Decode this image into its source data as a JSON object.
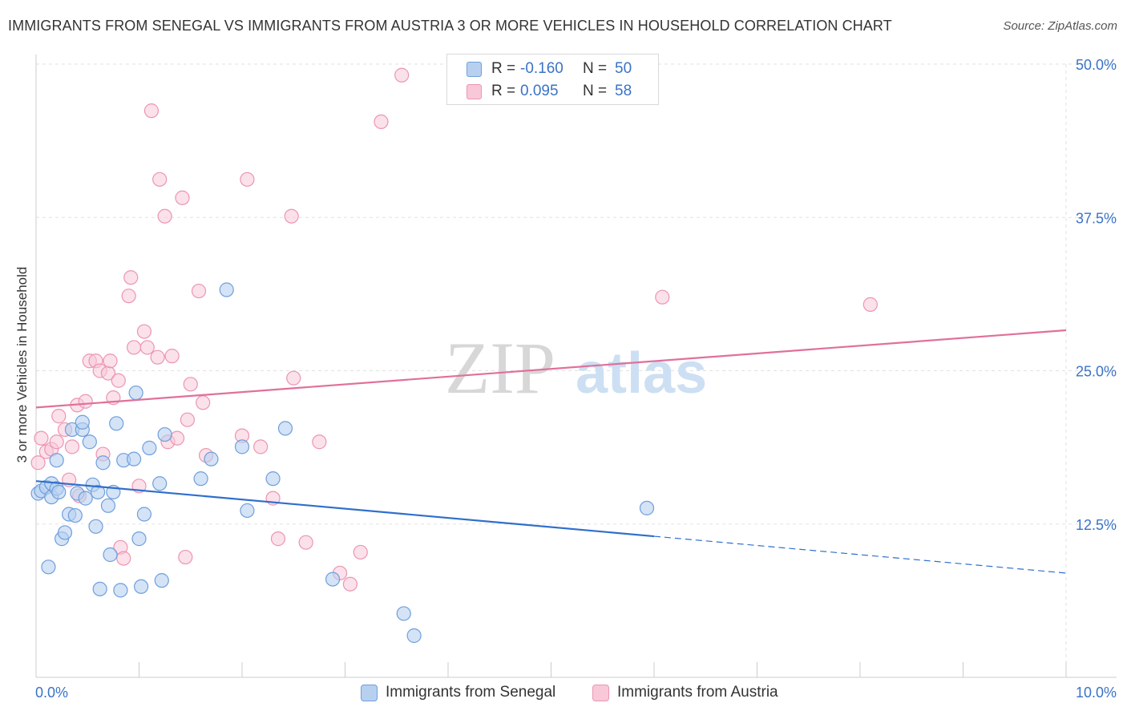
{
  "title": "IMMIGRANTS FROM SENEGAL VS IMMIGRANTS FROM AUSTRIA 3 OR MORE VEHICLES IN HOUSEHOLD CORRELATION CHART",
  "source": "Source: ZipAtlas.com",
  "watermark": {
    "zip": "ZIP",
    "atlas": "atlas"
  },
  "legend": {
    "rows": [
      {
        "r_label": "R =",
        "r_value": "-0.160",
        "n_label": "N =",
        "n_value": "50"
      },
      {
        "r_label": "R =",
        "r_value": "0.095",
        "n_label": "N =",
        "n_value": "58"
      }
    ]
  },
  "colors": {
    "senegal_fill": "#b8d0f0",
    "senegal_stroke": "#6f9fdc",
    "senegal_line": "#2f6fcc",
    "austria_fill": "#f8c8d8",
    "austria_stroke": "#ec95b2",
    "austria_line": "#e0709a",
    "grid": "#e2e2e2",
    "tick_label": "#3a73c6"
  },
  "chart_data": {
    "type": "scatter",
    "title": "IMMIGRANTS FROM SENEGAL VS IMMIGRANTS FROM AUSTRIA 3 OR MORE VEHICLES IN HOUSEHOLD CORRELATION CHART",
    "xlabel": "",
    "ylabel": "3 or more Vehicles in Household",
    "xlim": [
      0,
      10
    ],
    "ylim": [
      0,
      50
    ],
    "x_tick_labels": [
      "0.0%",
      "10.0%"
    ],
    "y_ticks": [
      12.5,
      25.0,
      37.5,
      50.0
    ],
    "y_tick_labels": [
      "12.5%",
      "25.0%",
      "37.5%",
      "50.0%"
    ],
    "grid": true,
    "legend_position": "bottom",
    "series": [
      {
        "name": "Immigrants from Senegal",
        "r": -0.16,
        "n": 50,
        "trend": {
          "x0": 0,
          "y0": 16.0,
          "x1": 6.0,
          "y1": 11.5,
          "dash_to_x": 10.0,
          "dash_to_y": 8.5
        },
        "points": [
          [
            0.02,
            15.0
          ],
          [
            0.05,
            15.2
          ],
          [
            0.1,
            15.5
          ],
          [
            0.12,
            9.0
          ],
          [
            0.15,
            15.8
          ],
          [
            0.15,
            14.7
          ],
          [
            0.2,
            15.4
          ],
          [
            0.2,
            17.7
          ],
          [
            0.22,
            15.1
          ],
          [
            0.25,
            11.3
          ],
          [
            0.28,
            11.8
          ],
          [
            0.32,
            13.3
          ],
          [
            0.35,
            20.2
          ],
          [
            0.38,
            13.2
          ],
          [
            0.4,
            15.0
          ],
          [
            0.45,
            20.2
          ],
          [
            0.45,
            20.8
          ],
          [
            0.48,
            14.6
          ],
          [
            0.52,
            19.2
          ],
          [
            0.55,
            15.7
          ],
          [
            0.58,
            12.3
          ],
          [
            0.6,
            15.1
          ],
          [
            0.62,
            7.2
          ],
          [
            0.65,
            17.5
          ],
          [
            0.7,
            14.0
          ],
          [
            0.72,
            10.0
          ],
          [
            0.75,
            15.1
          ],
          [
            0.78,
            20.7
          ],
          [
            0.82,
            7.1
          ],
          [
            0.85,
            17.7
          ],
          [
            0.95,
            17.8
          ],
          [
            0.97,
            23.2
          ],
          [
            1.0,
            11.3
          ],
          [
            1.02,
            7.4
          ],
          [
            1.05,
            13.3
          ],
          [
            1.1,
            18.7
          ],
          [
            1.2,
            15.8
          ],
          [
            1.22,
            7.9
          ],
          [
            1.25,
            19.8
          ],
          [
            1.6,
            16.2
          ],
          [
            1.7,
            17.8
          ],
          [
            1.85,
            31.6
          ],
          [
            2.0,
            18.8
          ],
          [
            2.05,
            13.6
          ],
          [
            2.3,
            16.2
          ],
          [
            2.42,
            20.3
          ],
          [
            2.88,
            8.0
          ],
          [
            3.57,
            5.2
          ],
          [
            3.67,
            3.4
          ],
          [
            5.93,
            13.8
          ]
        ]
      },
      {
        "name": "Immigrants from Austria",
        "r": 0.095,
        "n": 58,
        "trend": {
          "x0": 0,
          "y0": 22.0,
          "x1": 10.0,
          "y1": 28.3
        },
        "points": [
          [
            0.02,
            17.5
          ],
          [
            0.05,
            19.5
          ],
          [
            0.1,
            18.4
          ],
          [
            0.15,
            18.6
          ],
          [
            0.2,
            19.2
          ],
          [
            0.22,
            21.3
          ],
          [
            0.28,
            20.2
          ],
          [
            0.32,
            16.1
          ],
          [
            0.35,
            18.8
          ],
          [
            0.4,
            22.2
          ],
          [
            0.42,
            14.8
          ],
          [
            0.48,
            22.5
          ],
          [
            0.52,
            25.8
          ],
          [
            0.58,
            25.8
          ],
          [
            0.62,
            25.0
          ],
          [
            0.65,
            18.2
          ],
          [
            0.7,
            24.8
          ],
          [
            0.72,
            25.8
          ],
          [
            0.75,
            22.8
          ],
          [
            0.8,
            24.2
          ],
          [
            0.82,
            10.6
          ],
          [
            0.85,
            9.7
          ],
          [
            0.9,
            31.1
          ],
          [
            0.92,
            32.6
          ],
          [
            0.95,
            26.9
          ],
          [
            1.0,
            15.6
          ],
          [
            1.05,
            28.2
          ],
          [
            1.08,
            26.9
          ],
          [
            1.12,
            46.2
          ],
          [
            1.18,
            26.1
          ],
          [
            1.2,
            40.6
          ],
          [
            1.25,
            37.6
          ],
          [
            1.28,
            19.2
          ],
          [
            1.32,
            26.2
          ],
          [
            1.37,
            19.5
          ],
          [
            1.42,
            39.1
          ],
          [
            1.45,
            9.8
          ],
          [
            1.47,
            21.0
          ],
          [
            1.5,
            23.9
          ],
          [
            1.58,
            31.5
          ],
          [
            1.62,
            22.4
          ],
          [
            1.65,
            18.1
          ],
          [
            2.0,
            19.7
          ],
          [
            2.05,
            40.6
          ],
          [
            2.18,
            18.8
          ],
          [
            2.3,
            14.6
          ],
          [
            2.35,
            11.3
          ],
          [
            2.48,
            37.6
          ],
          [
            2.5,
            24.4
          ],
          [
            2.62,
            11.0
          ],
          [
            2.75,
            19.2
          ],
          [
            2.95,
            8.5
          ],
          [
            3.05,
            7.6
          ],
          [
            3.15,
            10.2
          ],
          [
            3.35,
            45.3
          ],
          [
            3.55,
            49.1
          ],
          [
            6.08,
            31.0
          ],
          [
            8.1,
            30.4
          ]
        ]
      }
    ]
  },
  "bottom_legend": [
    {
      "label": "Immigrants from Senegal"
    },
    {
      "label": "Immigrants from Austria"
    }
  ]
}
